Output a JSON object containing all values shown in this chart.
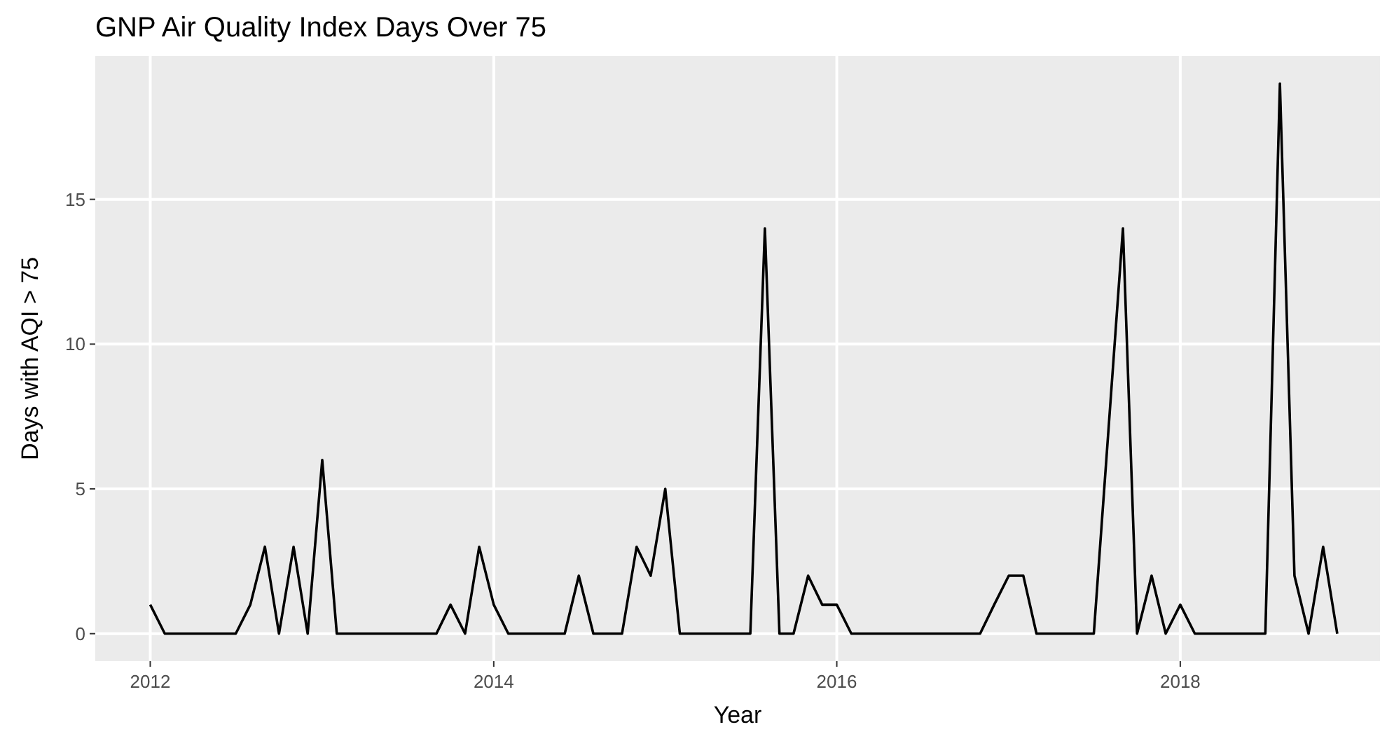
{
  "chart_data": {
    "type": "line",
    "title": "GNP Air Quality Index Days Over 75",
    "xlabel": "Year",
    "ylabel": "Days with AQI > 75",
    "x": [
      "2012-01",
      "2012-02",
      "2012-03",
      "2012-04",
      "2012-05",
      "2012-06",
      "2012-07",
      "2012-08",
      "2012-09",
      "2012-10",
      "2012-11",
      "2012-12",
      "2013-01",
      "2013-02",
      "2013-03",
      "2013-04",
      "2013-05",
      "2013-06",
      "2013-07",
      "2013-08",
      "2013-09",
      "2013-10",
      "2013-11",
      "2013-12",
      "2014-01",
      "2014-02",
      "2014-03",
      "2014-04",
      "2014-05",
      "2014-06",
      "2014-07",
      "2014-08",
      "2014-09",
      "2014-10",
      "2014-11",
      "2014-12",
      "2015-01",
      "2015-02",
      "2015-03",
      "2015-04",
      "2015-05",
      "2015-06",
      "2015-07",
      "2015-08",
      "2015-09",
      "2015-10",
      "2015-11",
      "2015-12",
      "2016-01",
      "2016-02",
      "2016-03",
      "2016-04",
      "2016-05",
      "2016-06",
      "2016-07",
      "2016-08",
      "2016-09",
      "2016-10",
      "2016-11",
      "2016-12",
      "2017-01",
      "2017-02",
      "2017-03",
      "2017-04",
      "2017-05",
      "2017-06",
      "2017-07",
      "2017-08",
      "2017-09",
      "2017-10",
      "2017-11",
      "2017-12",
      "2018-01",
      "2018-02",
      "2018-03",
      "2018-04",
      "2018-05",
      "2018-06",
      "2018-07",
      "2018-08",
      "2018-09",
      "2018-10",
      "2018-11",
      "2018-12"
    ],
    "series": [
      {
        "color": "#000000",
        "values": [
          1,
          0,
          0,
          0,
          0,
          0,
          0,
          1,
          3,
          0,
          3,
          0,
          6,
          0,
          0,
          0,
          0,
          0,
          0,
          0,
          0,
          1,
          0,
          3,
          1,
          0,
          0,
          0,
          0,
          0,
          2,
          0,
          0,
          0,
          3,
          2,
          5,
          0,
          0,
          0,
          0,
          0,
          0,
          14,
          0,
          0,
          2,
          1,
          1,
          0,
          0,
          0,
          0,
          0,
          0,
          0,
          0,
          0,
          0,
          1,
          2,
          2,
          0,
          0,
          0,
          0,
          0,
          7,
          14,
          0,
          2,
          0,
          1,
          0,
          0,
          0,
          0,
          0,
          0,
          19,
          2,
          0,
          3,
          0
        ]
      }
    ],
    "xlim": [
      "2011-09-06",
      "2019-03-02"
    ],
    "xticks": [
      {
        "value": "2012-01-01",
        "label": "2012"
      },
      {
        "value": "2014-01-01",
        "label": "2014"
      },
      {
        "value": "2016-01-01",
        "label": "2016"
      },
      {
        "value": "2018-01-01",
        "label": "2018"
      }
    ],
    "ylim": [
      -0.95,
      19.95
    ],
    "yticks": [
      0,
      5,
      10,
      15
    ],
    "grid": true,
    "marker": "none",
    "line_style": "solid"
  }
}
